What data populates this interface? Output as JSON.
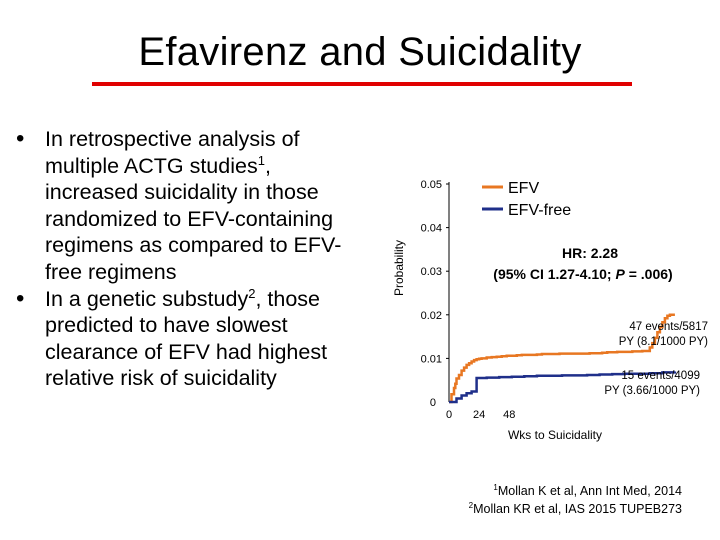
{
  "slide": {
    "title": "Efavirenz and Suicidality",
    "title_rule_color": "#e00000"
  },
  "bullets": {
    "b1_text": "In retrospective analysis of multiple ACTG studies",
    "b1_sup": "1",
    "b1_after": ", increased suicidality in those randomized to EFV-containing regimens as compared to EFV-free regimens",
    "b2_text": "In a genetic substudy",
    "b2_sup": "2",
    "b2_after": ", those predicted to have slowest clearance of EFV had highest relative risk of suicidality"
  },
  "chart_data": {
    "type": "line",
    "ylabel": "Probability",
    "xlabel": "Wks to Suicidality",
    "ylim": [
      0,
      0.05
    ],
    "xlim": [
      0,
      192
    ],
    "y_ticks": [
      {
        "value": 0.05,
        "label": "0.05"
      },
      {
        "value": 0.04,
        "label": "0.04"
      },
      {
        "value": 0.03,
        "label": "0.03"
      },
      {
        "value": 0.02,
        "label": "0.02"
      },
      {
        "value": 0.01,
        "label": "0.01"
      },
      {
        "value": 0,
        "label": "0"
      }
    ],
    "x_ticks": [
      {
        "value": 0,
        "label": "0"
      },
      {
        "value": 24,
        "label": "24"
      },
      {
        "value": 48,
        "label": "48"
      }
    ],
    "legend": {
      "position": "top-right",
      "items": [
        {
          "label": "EFV",
          "color": "#e87722"
        },
        {
          "label": "EFV-free",
          "color": "#1f2f8a"
        }
      ]
    },
    "hr_line1": "HR: 2.28",
    "hr_line2_pre": "(95% CI 1.27-4.10; ",
    "hr_p": "P",
    "hr_line2_post": " = .006)",
    "efv_events_line1": "47 events/5817",
    "efv_events_line2": "PY (8.1/1000 PY)",
    "efv_free_events_line1": "15 events/4099",
    "efv_free_events_line2": "PY (3.66/1000 PY)",
    "series": [
      {
        "name": "EFV",
        "color": "#e87722",
        "x": [
          0,
          2,
          4,
          5,
          6,
          8,
          10,
          12,
          14,
          16,
          18,
          20,
          22,
          24,
          26,
          30,
          34,
          38,
          42,
          46,
          50,
          54,
          58,
          62,
          66,
          70,
          74,
          78,
          82,
          88,
          94,
          100,
          106,
          112,
          118,
          122,
          126,
          130,
          134,
          138,
          142,
          146,
          150,
          154,
          158,
          160,
          162,
          164,
          166,
          168,
          170,
          172,
          174,
          176,
          178,
          180
        ],
        "y": [
          0,
          0.0018,
          0.0032,
          0.0042,
          0.0054,
          0.0062,
          0.0072,
          0.0079,
          0.0085,
          0.0089,
          0.0093,
          0.0096,
          0.0098,
          0.0099,
          0.01,
          0.0102,
          0.0103,
          0.0104,
          0.0105,
          0.0106,
          0.0106,
          0.0107,
          0.0108,
          0.0108,
          0.0108,
          0.0109,
          0.011,
          0.011,
          0.011,
          0.0111,
          0.0111,
          0.0111,
          0.0111,
          0.0112,
          0.0112,
          0.0113,
          0.0114,
          0.0114,
          0.0115,
          0.0115,
          0.0115,
          0.0116,
          0.0116,
          0.0117,
          0.0117,
          0.0125,
          0.0135,
          0.0147,
          0.016,
          0.0172,
          0.0183,
          0.0192,
          0.0198,
          0.02,
          0.02,
          0.02
        ]
      },
      {
        "name": "EFV-free",
        "color": "#1f2f8a",
        "x": [
          0,
          6,
          10,
          14,
          18,
          22,
          30,
          40,
          50,
          60,
          70,
          80,
          90,
          100,
          110,
          120,
          130,
          140,
          150,
          160,
          170,
          180
        ],
        "y": [
          0,
          0.0008,
          0.0015,
          0.002,
          0.0024,
          0.0055,
          0.0056,
          0.0057,
          0.0058,
          0.0059,
          0.006,
          0.006,
          0.0061,
          0.0061,
          0.0062,
          0.0063,
          0.0064,
          0.0065,
          0.0065,
          0.0066,
          0.0068,
          0.007
        ]
      }
    ]
  },
  "refs": {
    "r1_sup": "1",
    "r1_text": "Mollan K et al, Ann Int Med, 2014",
    "r2_sup": "2",
    "r2_text": "Mollan KR et al, IAS 2015 TUPEB273"
  }
}
